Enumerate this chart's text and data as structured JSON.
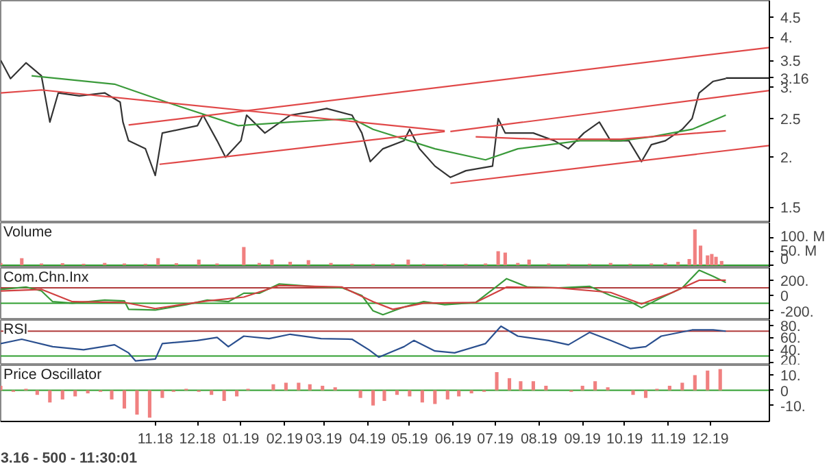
{
  "chart_data": [
    {
      "type": "line",
      "log": true,
      "tick_labels": "y",
      "xlim": [
        "2018-07-14",
        "2020-01-12"
      ],
      "ylim": [
        1.37,
        4.94
      ],
      "yticks": [
        {
          "value": 1.5,
          "label": "1.5"
        },
        {
          "value": 2,
          "label": "2."
        },
        {
          "value": 2.5,
          "label": "2.5"
        },
        {
          "value": 3,
          "label": "3."
        },
        {
          "value": 3.16,
          "label": "3.16"
        },
        {
          "value": 3.5,
          "label": "3.5"
        },
        {
          "value": 4,
          "label": "4."
        },
        {
          "value": 4.5,
          "label": "4.5"
        }
      ],
      "series": [
        {
          "color": "#333333",
          "x": [
            "2018-07-14",
            "2018-07-21",
            "2018-08-01",
            "2018-08-12",
            "2018-08-18",
            "2018-08-24",
            "2018-09-08",
            "2018-09-26",
            "2018-10-07",
            "2018-10-09",
            "2018-10-13",
            "2018-10-25",
            "2018-11-01",
            "2018-11-06",
            "2018-12-01",
            "2018-12-05",
            "2018-12-15",
            "2018-12-21",
            "2019-01-01",
            "2019-01-05",
            "2019-01-18",
            "2019-02-05",
            "2019-02-20",
            "2019-03-03",
            "2019-03-21",
            "2019-03-28",
            "2019-04-03",
            "2019-04-12",
            "2019-04-27",
            "2019-05-01",
            "2019-05-08",
            "2019-05-19",
            "2019-05-30",
            "2019-06-10",
            "2019-06-29",
            "2019-07-03",
            "2019-07-08",
            "2019-07-28",
            "2019-08-12",
            "2019-08-22",
            "2019-09-02",
            "2019-09-13",
            "2019-09-21",
            "2019-10-04",
            "2019-10-13",
            "2019-10-20",
            "2019-10-30",
            "2019-11-11",
            "2019-11-18",
            "2019-11-23",
            "2019-12-03",
            "2019-12-12"
          ],
          "values": [
            3.5,
            3.15,
            3.45,
            3.2,
            2.45,
            2.9,
            2.85,
            2.9,
            2.75,
            2.45,
            2.2,
            2.1,
            1.8,
            2.3,
            2.4,
            2.55,
            2.2,
            2.0,
            2.2,
            2.55,
            2.3,
            2.55,
            2.6,
            2.65,
            2.55,
            2.3,
            1.95,
            2.1,
            2.2,
            2.35,
            2.1,
            1.9,
            1.78,
            1.85,
            1.9,
            2.5,
            2.3,
            2.3,
            2.2,
            2.1,
            2.3,
            2.45,
            2.2,
            2.2,
            1.95,
            2.15,
            2.2,
            2.35,
            2.5,
            2.9,
            3.1,
            3.15
          ]
        },
        {
          "color": "#3a9a3a",
          "x": [
            "2018-08-05",
            "2018-10-03",
            "2018-11-09",
            "2018-12-30",
            "2019-02-05",
            "2019-03-21",
            "2019-04-05",
            "2019-05-19",
            "2019-06-24",
            "2019-07-17",
            "2019-08-30",
            "2019-09-28",
            "2019-10-20",
            "2019-11-18",
            "2019-12-12"
          ],
          "values": [
            3.2,
            3.05,
            2.75,
            2.4,
            2.45,
            2.5,
            2.35,
            2.1,
            1.97,
            2.1,
            2.2,
            2.2,
            2.25,
            2.35,
            2.55
          ]
        },
        {
          "color": "#e04848",
          "x": [
            "2018-07-14",
            "2018-08-12",
            "2019-05-26"
          ],
          "values": [
            2.9,
            2.95,
            2.33
          ]
        },
        {
          "color": "#e04848",
          "x": [
            "2018-10-13",
            "2020-01-12"
          ],
          "values": [
            2.41,
            3.77
          ]
        },
        {
          "color": "#e04848",
          "x": [
            "2018-11-04",
            "2019-05-26"
          ],
          "values": [
            1.92,
            2.32
          ]
        },
        {
          "color": "#e04848",
          "x": [
            "2019-05-30",
            "2020-01-12"
          ],
          "values": [
            2.32,
            2.94
          ]
        },
        {
          "color": "#e04848",
          "x": [
            "2019-06-17",
            "2019-07-31",
            "2019-09-28",
            "2019-12-12"
          ],
          "values": [
            2.25,
            2.22,
            2.22,
            2.33
          ]
        },
        {
          "color": "#e04848",
          "x": [
            "2019-05-30",
            "2020-01-12"
          ],
          "values": [
            1.72,
            2.14
          ]
        },
        {
          "color": "#222222",
          "x": [
            "2019-12-12",
            "2020-01-12"
          ],
          "values": [
            3.16,
            3.16
          ]
        }
      ]
    },
    {
      "type": "bar",
      "title": "Volume",
      "tick_labels": "y",
      "xlim": [
        "2018-07-14",
        "2020-01-12"
      ],
      "ylim": [
        -10,
        152
      ],
      "yticks": [
        {
          "value": 0,
          "label": "0"
        },
        {
          "value": 50,
          "label": "50. M"
        },
        {
          "value": 100,
          "label": "100. M"
        }
      ],
      "ref_lines": [
        {
          "axis": "y",
          "value": 0,
          "color": "#2e9e2e"
        }
      ],
      "series": [
        {
          "color": "#f08080",
          "x": [
            "2018-07-14",
            "2018-07-29",
            "2018-08-12",
            "2018-08-27",
            "2018-09-11",
            "2018-09-26",
            "2018-10-10",
            "2018-10-25",
            "2018-11-03",
            "2018-11-16",
            "2018-12-02",
            "2018-12-15",
            "2019-01-03",
            "2019-01-14",
            "2019-01-23",
            "2019-02-05",
            "2019-02-18",
            "2019-03-06",
            "2019-03-21",
            "2019-04-05",
            "2019-04-19",
            "2019-04-30",
            "2019-05-11",
            "2019-05-26",
            "2019-06-10",
            "2019-06-24",
            "2019-07-03",
            "2019-07-08",
            "2019-07-17",
            "2019-07-25",
            "2019-08-08",
            "2019-08-22",
            "2019-09-06",
            "2019-09-21",
            "2019-10-05",
            "2019-10-20",
            "2019-10-30",
            "2019-11-08",
            "2019-11-16",
            "2019-11-20",
            "2019-11-24",
            "2019-11-29",
            "2019-12-02",
            "2019-12-05",
            "2019-12-09"
          ],
          "values": [
            8,
            25,
            6,
            7,
            5,
            8,
            6,
            5,
            25,
            7,
            20,
            6,
            65,
            8,
            20,
            12,
            18,
            8,
            5,
            5,
            6,
            20,
            5,
            4,
            5,
            6,
            50,
            45,
            8,
            20,
            6,
            5,
            5,
            8,
            5,
            6,
            8,
            12,
            22,
            128,
            70,
            35,
            40,
            30,
            15
          ]
        }
      ]
    },
    {
      "type": "line",
      "title": "Com.Chn.Inx",
      "tick_labels": "y",
      "xlim": [
        "2018-07-14",
        "2020-01-12"
      ],
      "ylim": [
        -320,
        360
      ],
      "yticks": [
        {
          "value": -200,
          "label": "-200."
        },
        0,
        {
          "value": 200,
          "label": "200."
        }
      ],
      "ref_lines": [
        {
          "axis": "y",
          "value": 100,
          "color": "#b03a3a"
        },
        {
          "axis": "y",
          "value": -100,
          "color": "#2e9e2e"
        }
      ],
      "series": [
        {
          "color": "#3a9a3a",
          "x": [
            "2018-07-14",
            "2018-08-01",
            "2018-08-12",
            "2018-08-20",
            "2018-09-03",
            "2018-09-26",
            "2018-10-10",
            "2018-10-13",
            "2018-11-01",
            "2018-11-23",
            "2018-12-08",
            "2018-12-23",
            "2019-01-03",
            "2019-01-14",
            "2019-01-28",
            "2019-02-20",
            "2019-03-14",
            "2019-03-28",
            "2019-04-05",
            "2019-04-12",
            "2019-04-27",
            "2019-05-11",
            "2019-05-26",
            "2019-06-17",
            "2019-07-02",
            "2019-07-09",
            "2019-07-24",
            "2019-08-15",
            "2019-09-06",
            "2019-09-21",
            "2019-10-05",
            "2019-10-13",
            "2019-10-27",
            "2019-11-11",
            "2019-11-23",
            "2019-12-03",
            "2019-12-12"
          ],
          "values": [
            80,
            110,
            60,
            -80,
            -100,
            -60,
            -70,
            -180,
            -190,
            -120,
            -60,
            -80,
            30,
            30,
            150,
            120,
            100,
            0,
            -200,
            -250,
            -150,
            -80,
            -120,
            -90,
            120,
            220,
            110,
            100,
            120,
            0,
            -80,
            -160,
            -30,
            100,
            330,
            250,
            170
          ]
        },
        {
          "color": "#d04040",
          "x": [
            "2018-07-14",
            "2018-08-12",
            "2018-09-03",
            "2018-10-10",
            "2018-11-01",
            "2018-12-08",
            "2019-01-03",
            "2019-01-28",
            "2019-03-14",
            "2019-04-05",
            "2019-04-19",
            "2019-05-11",
            "2019-06-17",
            "2019-07-09",
            "2019-08-15",
            "2019-09-21",
            "2019-10-13",
            "2019-11-04",
            "2019-11-23",
            "2019-12-12"
          ],
          "values": [
            60,
            80,
            -80,
            -90,
            -170,
            -70,
            -20,
            130,
            110,
            -80,
            -180,
            -100,
            -90,
            110,
            100,
            40,
            -110,
            40,
            200,
            200
          ]
        }
      ]
    },
    {
      "type": "line",
      "title": "RSI",
      "tick_labels": "y",
      "xlim": [
        "2018-07-14",
        "2020-01-12"
      ],
      "ylim": [
        15,
        88
      ],
      "yticks": [
        {
          "value": 20,
          "label": "20."
        },
        {
          "value": 40,
          "label": "40."
        },
        {
          "value": 60,
          "label": "60."
        },
        {
          "value": 80,
          "label": "80."
        }
      ],
      "ref_lines": [
        {
          "axis": "y",
          "value": 70,
          "color": "#b03a3a"
        },
        {
          "axis": "y",
          "value": 30,
          "color": "#2e9e2e"
        }
      ],
      "series": [
        {
          "color": "#2a4f8f",
          "x": [
            "2018-07-14",
            "2018-07-29",
            "2018-08-20",
            "2018-09-11",
            "2018-10-03",
            "2018-10-13",
            "2018-10-18",
            "2018-11-01",
            "2018-11-06",
            "2018-12-01",
            "2018-12-15",
            "2018-12-23",
            "2019-01-03",
            "2019-01-21",
            "2019-02-05",
            "2019-02-27",
            "2019-03-21",
            "2019-04-02",
            "2019-04-09",
            "2019-04-27",
            "2019-05-04",
            "2019-05-19",
            "2019-06-02",
            "2019-06-24",
            "2019-07-05",
            "2019-07-17",
            "2019-08-08",
            "2019-08-22",
            "2019-09-06",
            "2019-09-21",
            "2019-10-05",
            "2019-10-16",
            "2019-10-27",
            "2019-11-18",
            "2019-12-03",
            "2019-12-12"
          ],
          "values": [
            50,
            57,
            45,
            40,
            48,
            35,
            22,
            25,
            50,
            55,
            60,
            45,
            62,
            58,
            65,
            58,
            57,
            40,
            28,
            45,
            55,
            38,
            35,
            50,
            78,
            62,
            55,
            48,
            68,
            55,
            42,
            45,
            62,
            72,
            72,
            70
          ]
        }
      ]
    },
    {
      "type": "bar",
      "title": "Price Oscillator",
      "xlim": [
        "2018-07-14",
        "2020-01-12"
      ],
      "ylim": [
        -20.5,
        16.5
      ],
      "yticks": [
        {
          "value": -10,
          "label": "-10."
        },
        0,
        {
          "value": 10,
          "label": "10."
        }
      ],
      "xticks": [
        {
          "value": "2018-11-01",
          "label": "11.18"
        },
        {
          "value": "2018-12-01",
          "label": "12.18"
        },
        {
          "value": "2019-01-01",
          "label": "01.19"
        },
        {
          "value": "2019-02-01",
          "label": "02.19"
        },
        {
          "value": "2019-03-01",
          "label": "03.19"
        },
        {
          "value": "2019-04-01",
          "label": "04.19"
        },
        {
          "value": "2019-05-01",
          "label": "05.19"
        },
        {
          "value": "2019-06-01",
          "label": "06.19"
        },
        {
          "value": "2019-07-01",
          "label": "07.19"
        },
        {
          "value": "2019-08-01",
          "label": "08.19"
        },
        {
          "value": "2019-09-01",
          "label": "09.19"
        },
        {
          "value": "2019-10-01",
          "label": "10.19"
        },
        {
          "value": "2019-11-01",
          "label": "11.19"
        },
        {
          "value": "2019-12-01",
          "label": "12.19"
        }
      ],
      "ref_lines": [
        {
          "axis": "y",
          "value": 0,
          "color": "#2e9e2e"
        }
      ],
      "annotations": [
        "3.16 - 500 - 11:30:01"
      ],
      "series": [
        {
          "color": "#f08080",
          "x": [
            "2018-07-14",
            "2018-07-23",
            "2018-08-01",
            "2018-08-09",
            "2018-08-18",
            "2018-08-27",
            "2018-09-05",
            "2018-09-14",
            "2018-09-23",
            "2018-10-01",
            "2018-10-10",
            "2018-10-19",
            "2018-10-28",
            "2018-11-06",
            "2018-11-14",
            "2018-11-23",
            "2018-12-02",
            "2018-12-11",
            "2018-12-20",
            "2018-12-29",
            "2019-01-06",
            "2019-01-15",
            "2019-01-24",
            "2019-02-02",
            "2019-02-11",
            "2019-02-19",
            "2019-02-28",
            "2019-03-09",
            "2019-03-18",
            "2019-03-27",
            "2019-04-05",
            "2019-04-13",
            "2019-04-22",
            "2019-05-01",
            "2019-05-10",
            "2019-05-19",
            "2019-05-28",
            "2019-06-05",
            "2019-06-14",
            "2019-06-23",
            "2019-07-02",
            "2019-07-11",
            "2019-07-19",
            "2019-07-28",
            "2019-08-06",
            "2019-08-15",
            "2019-08-24",
            "2019-09-01",
            "2019-09-10",
            "2019-09-19",
            "2019-09-28",
            "2019-10-07",
            "2019-10-16",
            "2019-10-24",
            "2019-11-02",
            "2019-11-11",
            "2019-11-20",
            "2019-11-29",
            "2019-12-08"
          ],
          "values": [
            3,
            -1,
            1,
            -3,
            -8,
            -6,
            -4,
            -2,
            -1,
            -6,
            -12,
            -16,
            -18,
            -5,
            -1,
            1,
            -1,
            -3,
            -7,
            -4,
            1,
            0,
            4,
            5,
            5,
            4,
            3,
            2,
            0,
            -5,
            -10,
            -7,
            -3,
            -4,
            -8,
            -9,
            -6,
            -4,
            -2,
            -1,
            12,
            8,
            6,
            6,
            3,
            0,
            -1,
            3,
            6,
            2,
            0,
            -3,
            -5,
            1,
            3,
            5,
            10,
            13,
            14
          ]
        }
      ]
    }
  ]
}
